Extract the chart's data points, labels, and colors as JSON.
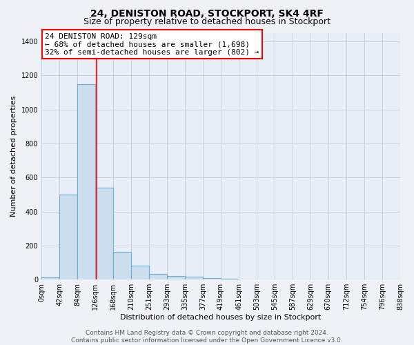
{
  "title": "24, DENISTON ROAD, STOCKPORT, SK4 4RF",
  "subtitle": "Size of property relative to detached houses in Stockport",
  "xlabel": "Distribution of detached houses by size in Stockport",
  "ylabel": "Number of detached properties",
  "bar_edges": [
    0,
    42,
    84,
    126,
    168,
    210,
    251,
    293,
    335,
    377,
    419,
    461,
    503,
    545,
    587,
    629,
    670,
    712,
    754,
    796,
    838
  ],
  "bar_heights": [
    15,
    500,
    1150,
    540,
    162,
    83,
    35,
    20,
    18,
    10,
    3,
    0,
    0,
    0,
    0,
    0,
    0,
    0,
    0,
    0
  ],
  "bar_color": "#ccdded",
  "bar_edgecolor": "#6baed6",
  "red_line_x": 129,
  "ann_line1": "24 DENISTON ROAD: 129sqm",
  "ann_line2": "← 68% of detached houses are smaller (1,698)",
  "ann_line3": "32% of semi-detached houses are larger (802) →",
  "ylim": [
    0,
    1450
  ],
  "yticks": [
    0,
    200,
    400,
    600,
    800,
    1000,
    1200,
    1400
  ],
  "xtick_labels": [
    "0sqm",
    "42sqm",
    "84sqm",
    "126sqm",
    "168sqm",
    "210sqm",
    "251sqm",
    "293sqm",
    "335sqm",
    "377sqm",
    "419sqm",
    "461sqm",
    "503sqm",
    "545sqm",
    "587sqm",
    "629sqm",
    "670sqm",
    "712sqm",
    "754sqm",
    "796sqm",
    "838sqm"
  ],
  "footer_text": "Contains HM Land Registry data © Crown copyright and database right 2024.\nContains public sector information licensed under the Open Government Licence v3.0.",
  "bg_color": "#eef2f7",
  "plot_bg_color": "#e8eef5",
  "title_fontsize": 10,
  "subtitle_fontsize": 9,
  "axis_label_fontsize": 8,
  "tick_fontsize": 7,
  "annotation_fontsize": 8,
  "footer_fontsize": 6.5
}
